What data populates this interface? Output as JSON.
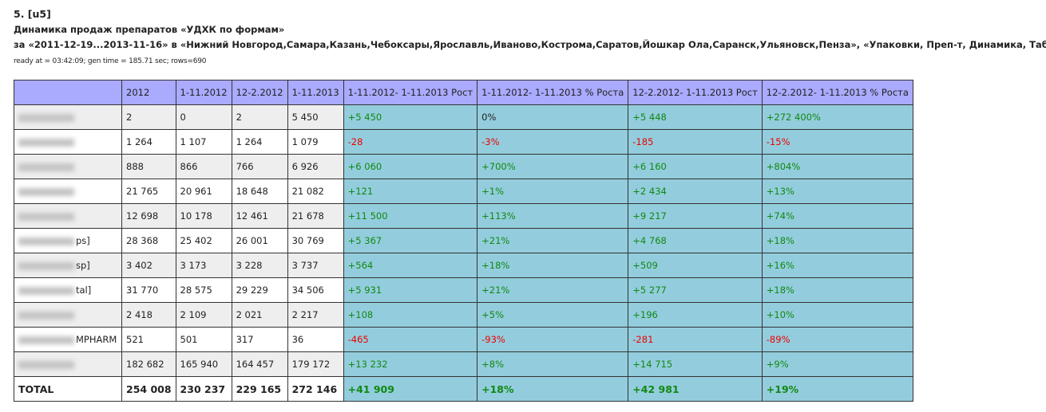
{
  "header": {
    "number": "5. [u5]",
    "title": "Динамика продаж препаратов «УДХК по формам»",
    "subtitle": "за «2011-12-19...2013-11-16» в «Нижний Новгород,Самара,Казань,Чебоксары,Ярославль,Иваново,Кострома,Саратов,Йошкар Ола,Саранск,Ульяновск,Пенза», «Упаковки, Преп-т, Динамика, Таблица»",
    "meta": "ready at = 03:42:09; gen time = 185.71 sec; rows=690"
  },
  "colors": {
    "header_bg": "#aaaaff",
    "delta_bg": "#93cddd",
    "positive": "#118811",
    "negative": "#ee0000"
  },
  "table": {
    "columns": [
      "",
      "2012",
      "1-11.2012",
      "12-2.2012",
      "1-11.2013",
      "1-11.2012- 1-11.2013 Рост",
      "1-11.2012- 1-11.2013 % Роста",
      "12-2.2012- 1-11.2013 Рост",
      "12-2.2012- 1-11.2013 % Роста"
    ],
    "rows": [
      {
        "name_suffix": "",
        "cells": [
          "2",
          "0",
          "2",
          "5 450",
          "+5 450",
          "0%",
          "+5 448",
          "+272 400%"
        ]
      },
      {
        "name_suffix": "",
        "cells": [
          "1 264",
          "1 107",
          "1 264",
          "1 079",
          "-28",
          "-3%",
          "-185",
          "-15%"
        ]
      },
      {
        "name_suffix": "",
        "cells": [
          "888",
          "866",
          "766",
          "6 926",
          "+6 060",
          "+700%",
          "+6 160",
          "+804%"
        ]
      },
      {
        "name_suffix": "",
        "cells": [
          "21 765",
          "20 961",
          "18 648",
          "21 082",
          "+121",
          "+1%",
          "+2 434",
          "+13%"
        ]
      },
      {
        "name_suffix": "",
        "cells": [
          "12 698",
          "10 178",
          "12 461",
          "21 678",
          "+11 500",
          "+113%",
          "+9 217",
          "+74%"
        ]
      },
      {
        "name_suffix": "ps]",
        "cells": [
          "28 368",
          "25 402",
          "26 001",
          "30 769",
          "+5 367",
          "+21%",
          "+4 768",
          "+18%"
        ]
      },
      {
        "name_suffix": "sp]",
        "cells": [
          "3 402",
          "3 173",
          "3 228",
          "3 737",
          "+564",
          "+18%",
          "+509",
          "+16%"
        ]
      },
      {
        "name_suffix": "tal]",
        "cells": [
          "31 770",
          "28 575",
          "29 229",
          "34 506",
          "+5 931",
          "+21%",
          "+5 277",
          "+18%"
        ]
      },
      {
        "name_suffix": "",
        "cells": [
          "2 418",
          "2 109",
          "2 021",
          "2 217",
          "+108",
          "+5%",
          "+196",
          "+10%"
        ]
      },
      {
        "name_suffix": "MPHARM",
        "cells": [
          "521",
          "501",
          "317",
          "36",
          "-465",
          "-93%",
          "-281",
          "-89%"
        ]
      },
      {
        "name_suffix": "",
        "cells": [
          "182 682",
          "165 940",
          "164 457",
          "179 172",
          "+13 232",
          "+8%",
          "+14 715",
          "+9%"
        ]
      }
    ],
    "total": {
      "label": "TOTAL",
      "cells": [
        "254 008",
        "230 237",
        "229 165",
        "272 146",
        "+41 909",
        "+18%",
        "+42 981",
        "+19%"
      ]
    }
  }
}
